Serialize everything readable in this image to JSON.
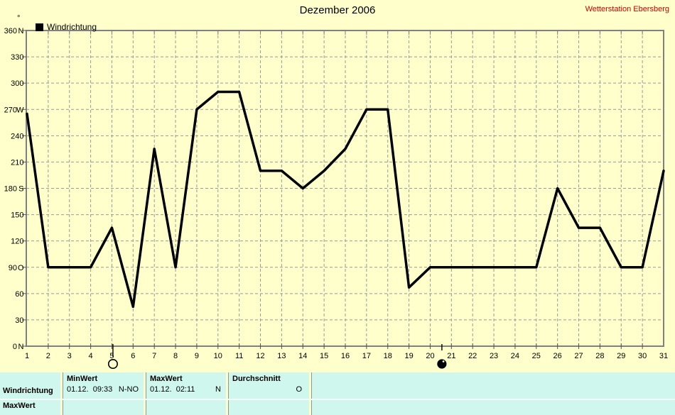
{
  "header": {
    "title": "Dezember 2006",
    "station": "Wetterstation Ebersberg"
  },
  "legend": {
    "label": "Windrichtung"
  },
  "y_axis": {
    "unit": "°"
  },
  "colors": {
    "background": "#FFFFCC",
    "table_cell": "#CFF7EE",
    "grid": "#999999",
    "axis": "#808080",
    "line": "#000000",
    "station_text": "#CC0000"
  },
  "chart_data": {
    "type": "line",
    "title": "Dezember 2006",
    "xlabel": "",
    "ylabel": "Windrichtung (°)",
    "xlim": [
      1,
      31
    ],
    "ylim": [
      0,
      360
    ],
    "grid": "dashed",
    "legend_position": "top-left",
    "x": [
      1,
      2,
      3,
      4,
      5,
      6,
      7,
      8,
      9,
      10,
      11,
      12,
      13,
      14,
      15,
      16,
      17,
      18,
      19,
      20,
      21,
      22,
      23,
      24,
      25,
      26,
      27,
      28,
      29,
      30,
      31
    ],
    "series": [
      {
        "name": "Windrichtung",
        "color": "#000000",
        "values": [
          265,
          90,
          90,
          90,
          135,
          45,
          225,
          90,
          270,
          290,
          290,
          200,
          200,
          180,
          200,
          225,
          270,
          270,
          67,
          90,
          90,
          90,
          90,
          90,
          90,
          180,
          135,
          135,
          90,
          90,
          200
        ]
      }
    ],
    "y_ticks": [
      {
        "value": 360,
        "label": "360",
        "compass": "N"
      },
      {
        "value": 330,
        "label": "330",
        "compass": ""
      },
      {
        "value": 300,
        "label": "300",
        "compass": ""
      },
      {
        "value": 270,
        "label": "270",
        "compass": "W"
      },
      {
        "value": 240,
        "label": "240",
        "compass": ""
      },
      {
        "value": 210,
        "label": "210",
        "compass": ""
      },
      {
        "value": 180,
        "label": "180",
        "compass": "S"
      },
      {
        "value": 150,
        "label": "150",
        "compass": ""
      },
      {
        "value": 120,
        "label": "120",
        "compass": ""
      },
      {
        "value": 90,
        "label": "90",
        "compass": "O"
      },
      {
        "value": 60,
        "label": "60",
        "compass": ""
      },
      {
        "value": 30,
        "label": "30",
        "compass": ""
      },
      {
        "value": 0,
        "label": "0",
        "compass": "N"
      }
    ],
    "moon_markers": [
      {
        "day": 5.05,
        "phase": "full-moon",
        "symbol": "open-circle"
      },
      {
        "day": 20.55,
        "phase": "new-moon",
        "symbol": "filled-circle"
      }
    ]
  },
  "table": {
    "row_label": "Windrichtung",
    "min": {
      "header": "MinWert",
      "value": "01.12.  09:33",
      "extra": "N-NO"
    },
    "max": {
      "header": "MaxWert",
      "value": "01.12.  02:11",
      "extra": "N"
    },
    "avg": {
      "header": "Durchschnitt",
      "value": "",
      "extra": "O"
    },
    "cutoff_row_label": "MaxWert"
  }
}
